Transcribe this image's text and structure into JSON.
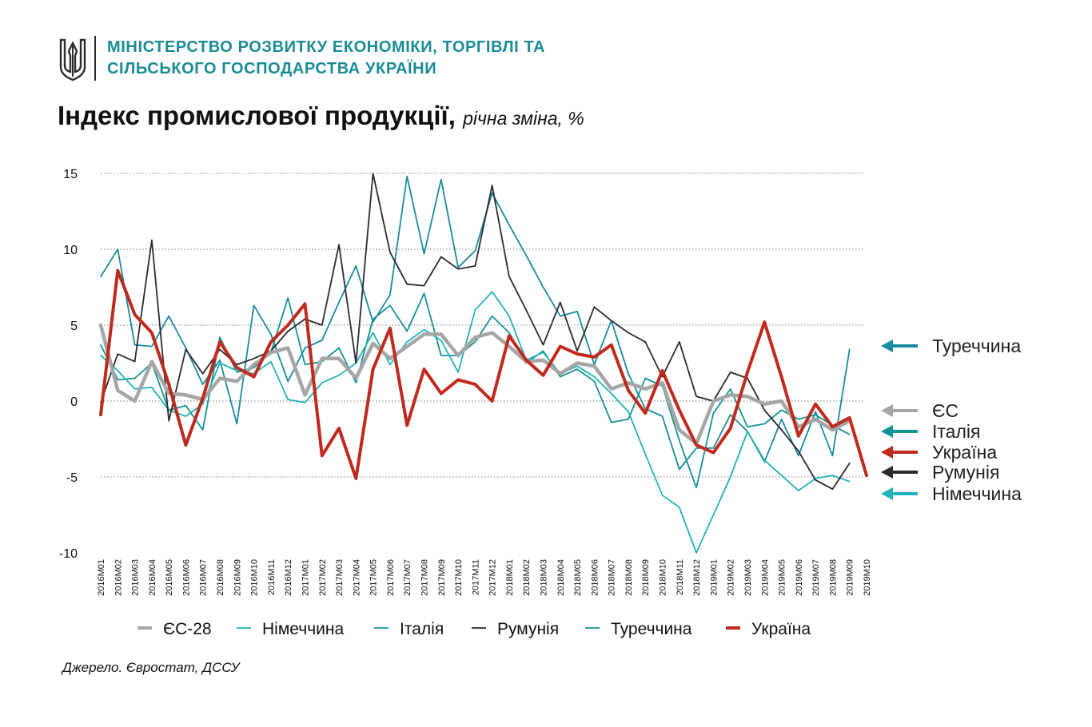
{
  "header": {
    "ministry_line1": "МІНІСТЕРСТВО РОЗВИТКУ ЕКОНОМІКИ, ТОРГІВЛІ ТА",
    "ministry_line2": "СІЛЬСЬКОГО ГОСПОДАРСТВА УКРАЇНИ",
    "logo_icon": "trident-icon"
  },
  "title": "Індекс промислової продукції,",
  "subtitle": "річна зміна, %",
  "source": "Джерело. Євростат, ДССУ",
  "chart_data": {
    "type": "line",
    "ylim": [
      -10,
      15
    ],
    "yticks": [
      15,
      10,
      5,
      0,
      -5,
      -10
    ],
    "grid": true,
    "legend_position": "bottom",
    "categories": [
      "2016M01",
      "2016M02",
      "2016M03",
      "2016M04",
      "2016M05",
      "2016M06",
      "2016M07",
      "2016M08",
      "2016M09",
      "2016M10",
      "2016M11",
      "2016M12",
      "2017M01",
      "2017M02",
      "2017M03",
      "2017M04",
      "2017M05",
      "2017M06",
      "2017M07",
      "2017M08",
      "2017M09",
      "2017M10",
      "2017M11",
      "2017M12",
      "2018M01",
      "2018M02",
      "2018M03",
      "2018M04",
      "2018M05",
      "2018M06",
      "2018M07",
      "2018M08",
      "2018M09",
      "2018M10",
      "2018M11",
      "2018M12",
      "2019M01",
      "2019M02",
      "2019M03",
      "2019M04",
      "2019M05",
      "2019M06",
      "2019M07",
      "2019M08",
      "2019M09",
      "2019M10"
    ],
    "series": [
      {
        "name": "ЄС-28",
        "color": "#a6a6a6",
        "width": 4.5,
        "values": [
          5.0,
          0.7,
          0.0,
          2.6,
          0.5,
          0.4,
          0.1,
          1.5,
          1.3,
          2.4,
          3.2,
          3.5,
          0.4,
          2.8,
          2.8,
          1.5,
          3.8,
          2.8,
          3.6,
          4.4,
          4.4,
          3.0,
          4.2,
          4.5,
          3.6,
          2.6,
          2.7,
          1.8,
          2.5,
          2.3,
          0.8,
          1.2,
          0.8,
          1.2,
          -1.9,
          -2.8,
          0.0,
          0.4,
          0.3,
          -0.2,
          0.0,
          -1.7,
          -1.2,
          -1.9,
          -1.3,
          null
        ]
      },
      {
        "name": "Німеччина",
        "color": "#22b3b8",
        "width": 1.8,
        "values": [
          3.0,
          2.0,
          0.8,
          0.9,
          -0.6,
          -1.0,
          -0.2,
          2.5,
          2.0,
          1.8,
          2.6,
          0.1,
          -0.1,
          1.2,
          1.7,
          2.5,
          4.5,
          2.4,
          3.9,
          4.7,
          4.0,
          1.9,
          6.0,
          7.2,
          5.6,
          2.7,
          3.2,
          1.8,
          2.3,
          1.6,
          0.5,
          -0.7,
          -3.5,
          -6.2,
          -7.0,
          -10.0,
          -7.5,
          -5.0,
          -2.0,
          -3.9,
          -4.9,
          -5.9,
          -5.1,
          -4.9,
          -5.3,
          null
        ]
      },
      {
        "name": "Італія",
        "color": "#149393",
        "width": 1.8,
        "values": [
          3.7,
          1.4,
          1.5,
          2.5,
          -0.6,
          -0.3,
          -1.9,
          4.2,
          1.9,
          2.2,
          3.2,
          6.8,
          2.4,
          2.6,
          3.5,
          1.2,
          5.4,
          6.3,
          4.6,
          7.1,
          3.0,
          3.0,
          3.9,
          5.6,
          4.5,
          2.5,
          3.3,
          1.6,
          2.1,
          1.3,
          -1.4,
          -1.2,
          1.5,
          1.0,
          -2.6,
          -5.7,
          -0.8,
          0.8,
          -1.7,
          -1.5,
          -0.6,
          -1.2,
          -0.9,
          -1.6,
          -2.2,
          null
        ]
      },
      {
        "name": "Румунія",
        "color": "#2a2a30",
        "width": 1.8,
        "values": [
          -0.1,
          3.1,
          2.6,
          10.6,
          -1.3,
          3.4,
          1.8,
          3.4,
          2.4,
          2.8,
          3.3,
          4.6,
          5.4,
          5.0,
          10.3,
          2.5,
          15.0,
          9.8,
          7.7,
          7.6,
          9.5,
          8.7,
          8.9,
          14.2,
          8.2,
          6.0,
          3.7,
          6.5,
          3.3,
          6.2,
          5.3,
          4.5,
          3.9,
          1.6,
          3.9,
          0.3,
          0.0,
          1.9,
          1.5,
          -0.6,
          -1.9,
          -3.3,
          -5.2,
          -5.8,
          -4.1,
          null
        ]
      },
      {
        "name": "Туреччина",
        "color": "#1a8aa0",
        "width": 1.8,
        "values": [
          8.2,
          10.0,
          3.7,
          3.6,
          5.6,
          3.5,
          1.1,
          2.7,
          -1.5,
          6.3,
          4.4,
          1.3,
          3.5,
          4.0,
          6.5,
          8.9,
          5.2,
          7.0,
          14.8,
          9.7,
          14.6,
          8.8,
          9.9,
          13.7,
          11.6,
          9.6,
          7.5,
          5.6,
          5.9,
          2.4,
          5.3,
          1.8,
          -0.5,
          -1.0,
          -4.5,
          -3.1,
          -3.1,
          -0.9,
          -2.0,
          -4.0,
          -1.2,
          -3.6,
          -0.7,
          -3.6,
          3.4,
          null
        ]
      },
      {
        "name": "Україна",
        "color": "#c0291d",
        "width": 4,
        "values": [
          -0.9,
          8.6,
          5.7,
          4.5,
          1.1,
          -2.9,
          0.2,
          3.9,
          2.2,
          1.6,
          3.9,
          5.0,
          6.4,
          -3.6,
          -1.8,
          -5.1,
          2.1,
          4.8,
          -1.6,
          2.1,
          0.5,
          1.4,
          1.1,
          0.0,
          4.3,
          2.7,
          1.7,
          3.6,
          3.1,
          2.9,
          3.7,
          0.7,
          -0.8,
          2.0,
          -0.6,
          -2.9,
          -3.4,
          -1.8,
          1.9,
          5.2,
          1.6,
          -2.3,
          -0.2,
          -1.7,
          -1.1,
          -4.9
        ]
      }
    ],
    "side_labels": [
      {
        "series": "Туреччина",
        "label": "Туреччина",
        "color": "#1a8aa0"
      },
      {
        "series": "ЄС-28",
        "label": "ЄС",
        "color": "#a6a6a6"
      },
      {
        "series": "Італія",
        "label": "Італія",
        "color": "#149393"
      },
      {
        "series": "Україна",
        "label": "Україна",
        "color": "#c0291d"
      },
      {
        "series": "Румунія",
        "label": "Румунія",
        "color": "#2a2a30"
      },
      {
        "series": "Німеччина",
        "label": "Німеччина",
        "color": "#22b3b8"
      }
    ]
  }
}
